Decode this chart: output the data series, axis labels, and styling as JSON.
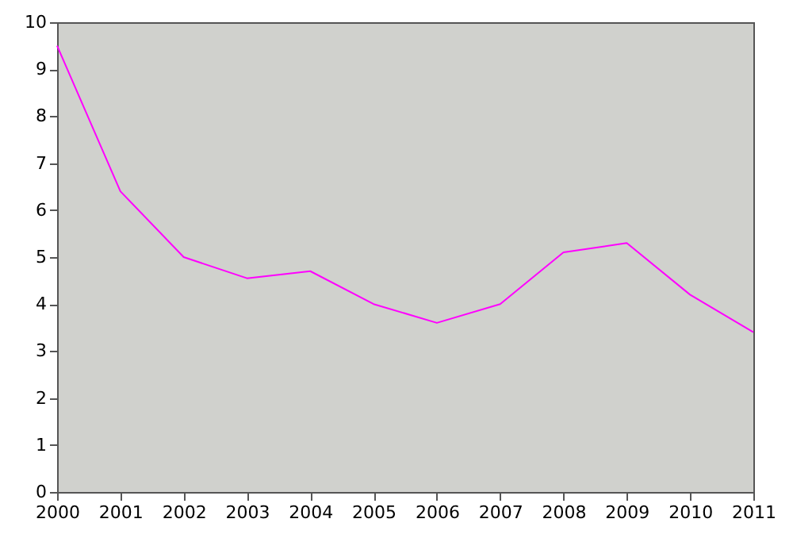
{
  "chart_data": {
    "type": "line",
    "categories": [
      "2000",
      "2001",
      "2002",
      "2003",
      "2004",
      "2005",
      "2006",
      "2007",
      "2008",
      "2009",
      "2010",
      "2011"
    ],
    "series": [
      {
        "color": "#ff00ff",
        "values": [
          9.5,
          6.4,
          5.0,
          4.55,
          4.7,
          4.0,
          3.6,
          4.0,
          5.1,
          5.3,
          4.2,
          3.4
        ]
      }
    ],
    "ylim": [
      0,
      10
    ],
    "yticks": [
      0,
      1,
      2,
      3,
      4,
      5,
      6,
      7,
      8,
      9,
      10
    ],
    "grid": false
  }
}
